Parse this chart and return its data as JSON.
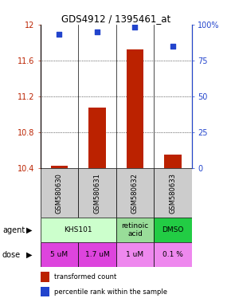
{
  "title": "GDS4912 / 1395461_at",
  "samples": [
    "GSM580630",
    "GSM580631",
    "GSM580632",
    "GSM580633"
  ],
  "bar_values": [
    10.43,
    11.08,
    11.72,
    10.55
  ],
  "bar_base": 10.4,
  "percentile_values": [
    93,
    95,
    98,
    85
  ],
  "ylim": [
    10.4,
    12.0
  ],
  "yticks": [
    10.4,
    10.8,
    11.2,
    11.6,
    12.0
  ],
  "ytick_labels": [
    "10.4",
    "10.8",
    "11.2",
    "11.6",
    "12"
  ],
  "right_yticks": [
    0,
    25,
    50,
    75,
    100
  ],
  "right_ytick_labels": [
    "0",
    "25",
    "50",
    "75",
    "100%"
  ],
  "bar_color": "#bb2200",
  "dot_color": "#2244cc",
  "agent_groups": [
    {
      "cols": [
        0,
        1
      ],
      "label": "KHS101",
      "color": "#ccffcc"
    },
    {
      "cols": [
        2
      ],
      "label": "retinoic\nacid",
      "color": "#99dd99"
    },
    {
      "cols": [
        3
      ],
      "label": "DMSO",
      "color": "#22cc44"
    }
  ],
  "dose_labels": [
    "5 uM",
    "1.7 uM",
    "1 uM",
    "0.1 %"
  ],
  "dose_colors": [
    "#dd44dd",
    "#dd44dd",
    "#ee88ee",
    "#ee88ee"
  ],
  "sample_bg_color": "#cccccc",
  "gridline_color": "black",
  "gridline_style": "dotted"
}
